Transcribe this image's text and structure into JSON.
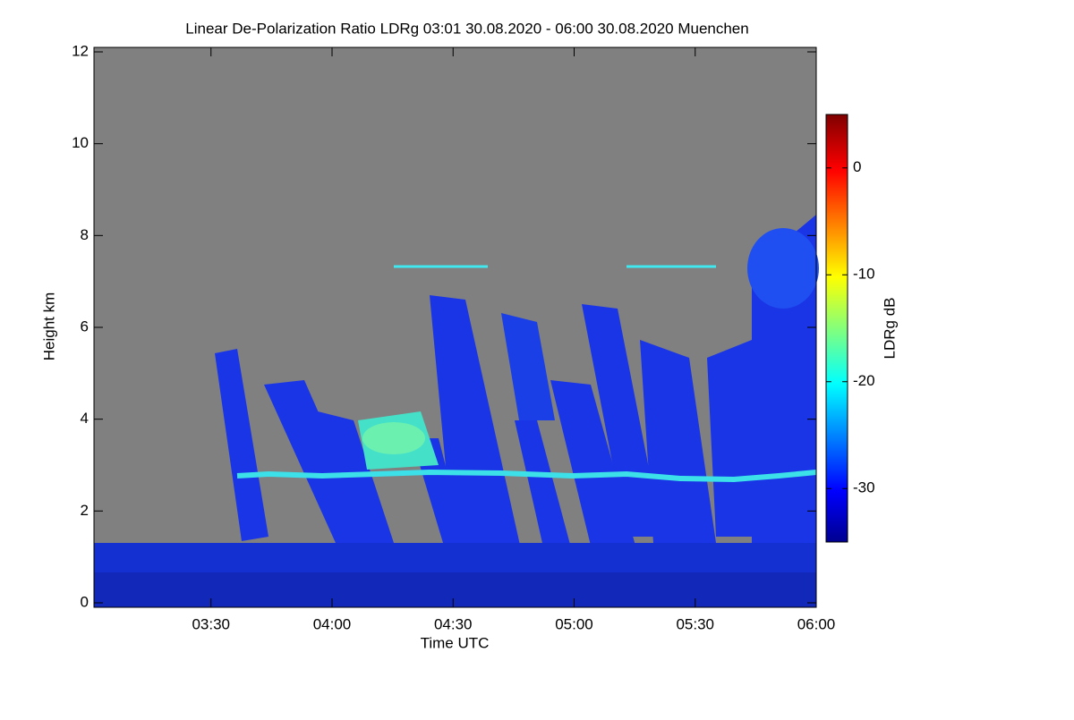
{
  "chart_data": {
    "type": "heatmap",
    "title": "Linear De-Polarization Ratio LDRg   03:01 30.08.2020 - 06:00 30.08.2020 Muenchen",
    "xlabel": "Time UTC",
    "ylabel": "Height km",
    "colorbar_label": "LDRg dB",
    "xlim": [
      3.0167,
      6.0
    ],
    "xticks": [
      {
        "value": 3.5,
        "label": "03:30"
      },
      {
        "value": 4.0,
        "label": "04:00"
      },
      {
        "value": 4.5,
        "label": "04:30"
      },
      {
        "value": 5.0,
        "label": "05:00"
      },
      {
        "value": 5.5,
        "label": "05:30"
      },
      {
        "value": 6.0,
        "label": "06:00"
      }
    ],
    "ylim": [
      0,
      12
    ],
    "yticks": [
      0,
      2,
      4,
      6,
      8,
      10,
      12
    ],
    "clim": [
      -35,
      5
    ],
    "cticks": [
      0,
      -10,
      -20,
      -30
    ]
  }
}
